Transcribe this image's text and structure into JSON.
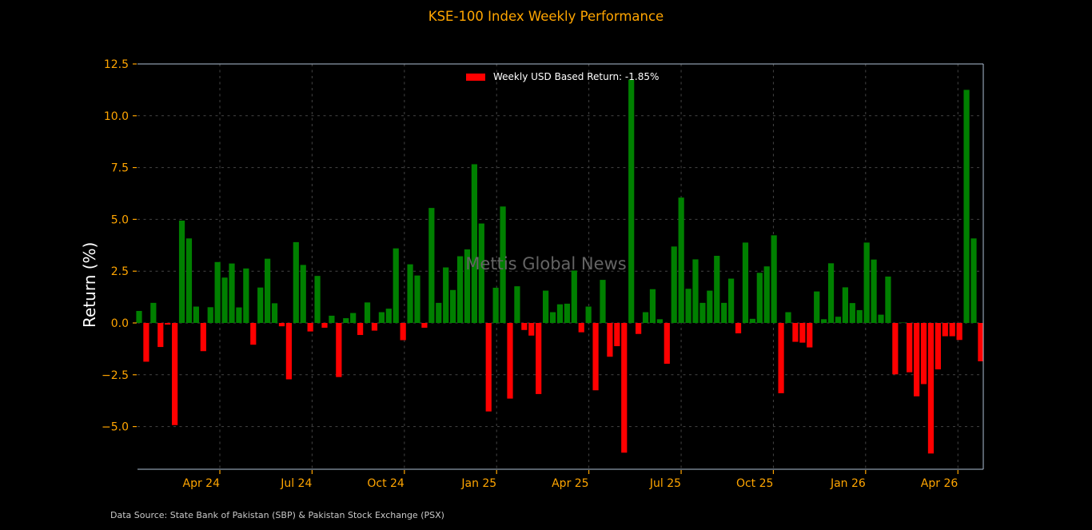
{
  "title": "KSE-100 Index Weekly Performance",
  "ylabel": "Return (%)",
  "legend": {
    "label": "Weekly USD Based Return: -1.85%"
  },
  "watermark": "Mettis Global News",
  "footer": "Data Source: State Bank of Pakistan (SBP) & Pakistan Stock Exchange (PSX)",
  "colors": {
    "background": "#000000",
    "positive": "#008000",
    "negative": "#ff0000",
    "axis_text": "#ffa500",
    "title": "#ffa500",
    "grid": "#454545",
    "spine": "#aebfd4",
    "label_text": "#ffffff",
    "watermark": "#646464",
    "footer": "#c8c8c8"
  },
  "chart_data": {
    "type": "bar",
    "title": "KSE-100 Index Weekly Performance",
    "xlabel": "",
    "ylabel": "Return (%)",
    "series_name": "Weekly USD Based Return",
    "latest_value_label": "-1.85%",
    "y_ticks": [
      12.5,
      10.0,
      7.5,
      5.0,
      2.5,
      0.0,
      -2.5,
      -5.0
    ],
    "ylim": [
      -7.18,
      12.5
    ],
    "grid": true,
    "legend_position": "upper center",
    "x_tick_labels": [
      "Apr 24",
      "Jul 24",
      "Oct 24",
      "Jan 25",
      "Apr 25",
      "Jul 25",
      "Oct 25",
      "Jan 26",
      "Apr 26"
    ],
    "x_tick_bar_index": [
      12.32,
      25.25,
      38.19,
      51.12,
      64.05,
      76.99,
      89.92,
      102.85,
      115.79
    ],
    "values": [
      0.58,
      -1.87,
      0.97,
      -1.16,
      -0.08,
      -4.93,
      4.94,
      4.08,
      0.79,
      -1.36,
      0.76,
      2.94,
      2.19,
      2.87,
      0.75,
      2.63,
      -1.05,
      1.71,
      3.1,
      0.95,
      -0.16,
      -2.72,
      3.9,
      2.8,
      -0.41,
      2.27,
      -0.23,
      0.35,
      -2.61,
      0.23,
      0.48,
      -0.58,
      0.99,
      -0.37,
      0.52,
      0.69,
      3.6,
      -0.83,
      2.83,
      2.29,
      -0.23,
      5.55,
      0.97,
      2.68,
      1.59,
      3.22,
      3.55,
      7.66,
      4.8,
      -4.27,
      1.7,
      5.62,
      -3.65,
      1.77,
      -0.34,
      -0.61,
      -3.43,
      1.56,
      0.52,
      0.9,
      0.93,
      2.53,
      -0.45,
      0.79,
      -3.25,
      2.08,
      -1.63,
      -1.12,
      -6.26,
      11.74,
      -0.53,
      0.52,
      1.63,
      0.18,
      -1.97,
      3.69,
      6.05,
      1.65,
      3.07,
      0.97,
      1.56,
      3.24,
      0.97,
      2.14,
      -0.5,
      3.88,
      0.2,
      2.42,
      2.73,
      4.23,
      -3.39,
      0.52,
      -0.91,
      -0.95,
      -1.18,
      1.52,
      0.18,
      2.88,
      0.3,
      1.72,
      0.96,
      0.62,
      3.88,
      3.06,
      0.4,
      2.24,
      -2.48,
      0.02,
      -2.38,
      -3.54,
      -2.95,
      -6.3,
      -2.24,
      -0.64,
      -0.64,
      -0.82,
      11.25,
      4.08,
      -1.85
    ]
  }
}
